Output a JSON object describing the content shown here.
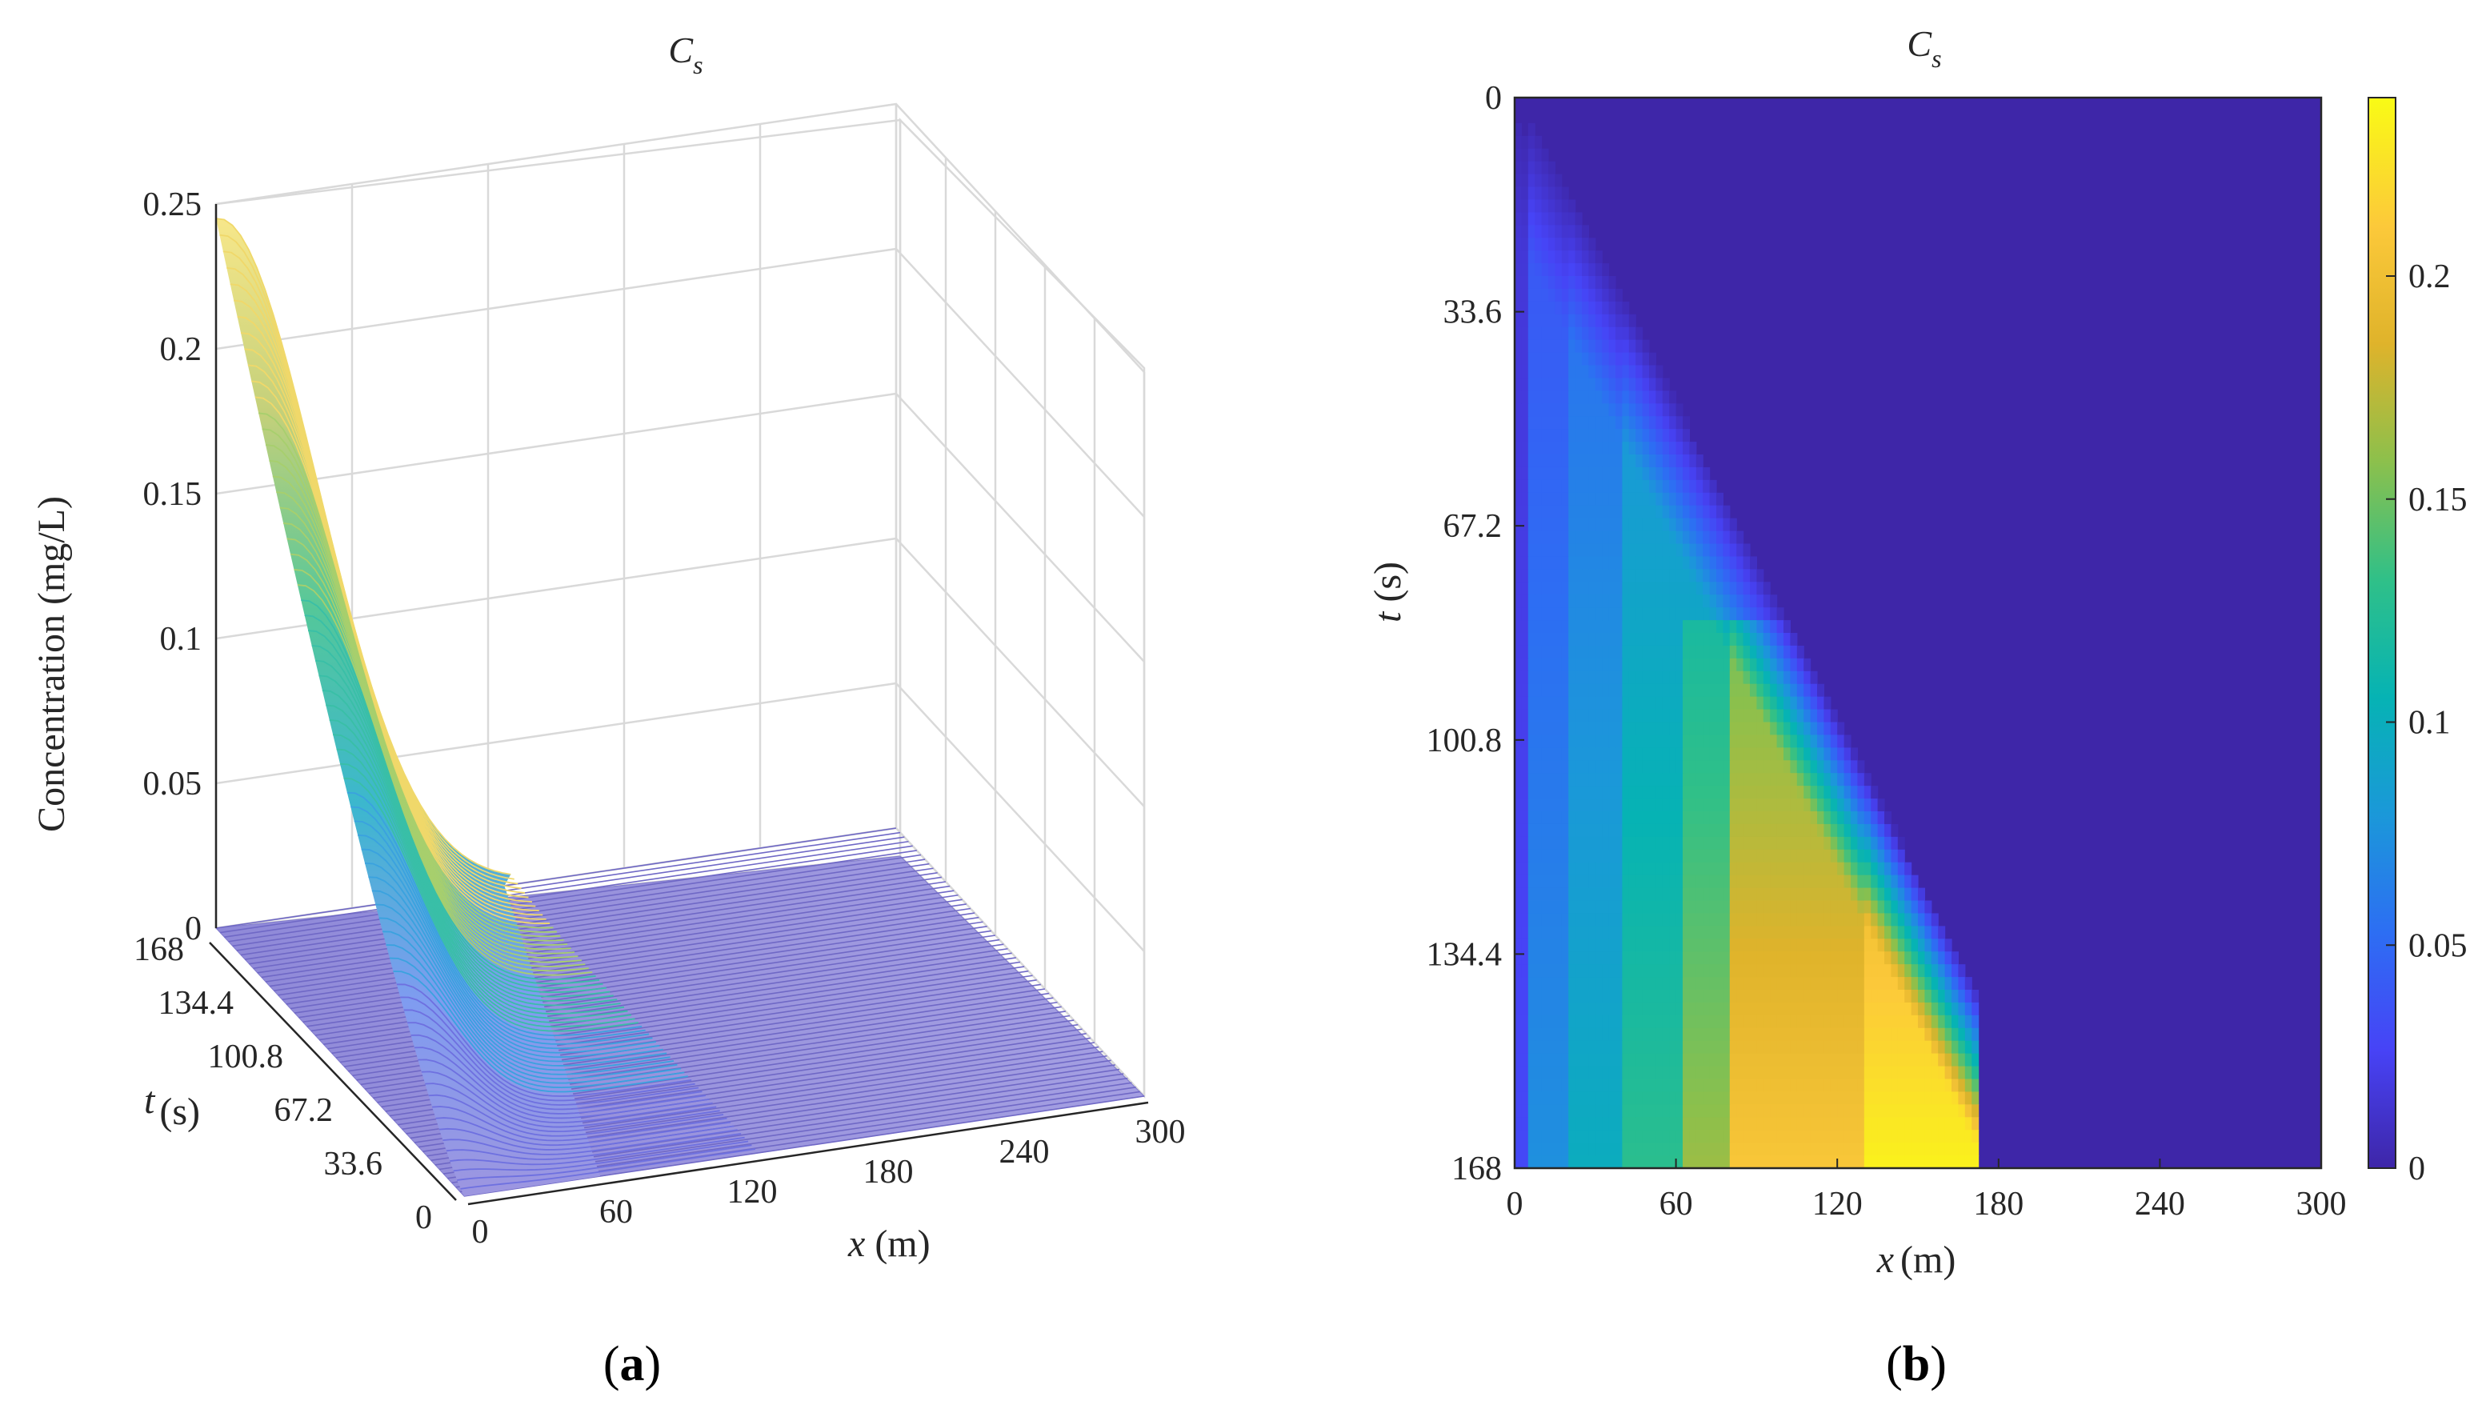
{
  "panels": {
    "a": {
      "label": "a",
      "title_main": "C",
      "title_sub": "s",
      "zlabel": "Concentration (mg/L)",
      "xlabel_var": "x",
      "xlabel_unit": "(m)",
      "ylabel_var": "t",
      "ylabel_unit": "(s)"
    },
    "b": {
      "label": "b",
      "title_main": "C",
      "title_sub": "s",
      "xlabel_var": "x",
      "xlabel_unit": "(m)",
      "ylabel_var": "t",
      "ylabel_unit": "(s)"
    }
  },
  "colors": {
    "parula": [
      "#3e26a8",
      "#4743f6",
      "#2d6ef3",
      "#1b98d9",
      "#06b3b4",
      "#30c088",
      "#8cc04c",
      "#dfb32b",
      "#fcc93a",
      "#f9fb15"
    ]
  },
  "chart_data": [
    {
      "type": "surface",
      "title": "Cs",
      "xlabel": "x (m)",
      "ylabel": "t (s)",
      "zlabel": "Concentration (mg/L)",
      "xlim": [
        0,
        300
      ],
      "ylim": [
        0,
        168
      ],
      "zlim": [
        0,
        0.25
      ],
      "x_ticks": [
        "0",
        "60",
        "120",
        "180",
        "240",
        "300"
      ],
      "y_ticks": [
        "0",
        "33.6",
        "67.2",
        "100.8",
        "134.4",
        "168"
      ],
      "z_ticks": [
        "0",
        "0.05",
        "0.1",
        "0.15",
        "0.2",
        "0.25"
      ],
      "peak": {
        "x": 0,
        "t": 168,
        "c": 0.245
      },
      "profiles": [
        {
          "t": 168,
          "points": [
            [
              0,
              0.245
            ],
            [
              20,
              0.225
            ],
            [
              40,
              0.17
            ],
            [
              60,
              0.095
            ],
            [
              80,
              0.035
            ],
            [
              100,
              0.008
            ],
            [
              120,
              0.0
            ]
          ]
        },
        {
          "t": 134.4,
          "points": [
            [
              0,
              0.19
            ],
            [
              20,
              0.17
            ],
            [
              40,
              0.12
            ],
            [
              60,
              0.06
            ],
            [
              80,
              0.02
            ],
            [
              100,
              0.0
            ]
          ]
        },
        {
          "t": 100.8,
          "points": [
            [
              0,
              0.14
            ],
            [
              20,
              0.12
            ],
            [
              40,
              0.075
            ],
            [
              60,
              0.03
            ],
            [
              80,
              0.005
            ],
            [
              100,
              0.0
            ]
          ]
        },
        {
          "t": 67.2,
          "points": [
            [
              0,
              0.09
            ],
            [
              20,
              0.07
            ],
            [
              40,
              0.035
            ],
            [
              60,
              0.008
            ],
            [
              80,
              0.0
            ]
          ]
        },
        {
          "t": 33.6,
          "points": [
            [
              0,
              0.045
            ],
            [
              20,
              0.028
            ],
            [
              40,
              0.008
            ],
            [
              60,
              0.0
            ]
          ]
        },
        {
          "t": 0,
          "points": [
            [
              0,
              0.0
            ],
            [
              300,
              0.0
            ]
          ]
        }
      ]
    },
    {
      "type": "heatmap",
      "title": "Cs",
      "xlabel": "x (m)",
      "ylabel": "t (s)",
      "xlim": [
        0,
        300
      ],
      "ylim": [
        0,
        168
      ],
      "y_reversed": true,
      "x_ticks": [
        "0",
        "60",
        "120",
        "180",
        "240",
        "300"
      ],
      "y_ticks": [
        "0",
        "33.6",
        "67.2",
        "100.8",
        "134.4",
        "168"
      ],
      "colorbar": {
        "range": [
          0,
          0.24
        ],
        "ticks": [
          "0",
          "0.05",
          "0.1",
          "0.15",
          "0.2"
        ]
      },
      "front_speed_m_per_s": 1.2,
      "bands": [
        {
          "x_from": 0,
          "x_to": 5,
          "value": 0.03
        },
        {
          "x_from": 5,
          "x_to": 20,
          "value": 0.075
        },
        {
          "x_from": 20,
          "x_to": 40,
          "value": 0.1
        },
        {
          "x_from": 40,
          "x_to": 62,
          "value": 0.13
        },
        {
          "x_from": 62,
          "x_to": 80,
          "value": 0.165
        },
        {
          "x_from": 80,
          "x_to": 130,
          "value": 0.21
        },
        {
          "x_from": 130,
          "x_to": 172,
          "value": 0.235
        }
      ],
      "step_edge": {
        "x": 65,
        "t_from": 82,
        "t_to": 168
      }
    }
  ]
}
